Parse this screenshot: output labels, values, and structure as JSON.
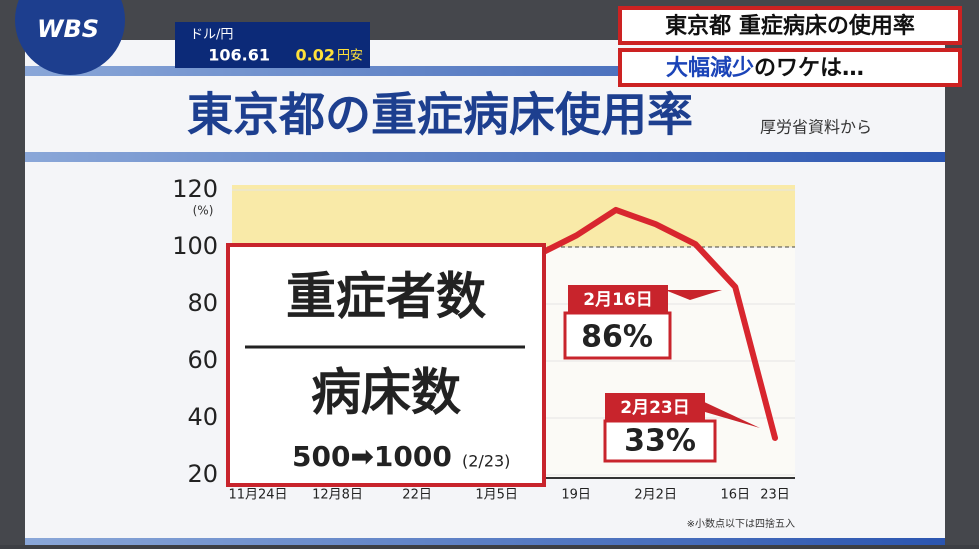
{
  "logo": "WBS",
  "ticker": {
    "pair": "ドル/円",
    "rate": "106.61",
    "change": "0.02",
    "direction": "円安"
  },
  "headline": {
    "line1": "東京都 重症病床の使用率",
    "line2_emphasis": "大幅減少",
    "line2_rest": "のワケは…"
  },
  "chart_data": {
    "type": "line",
    "title": "東京都の重症病床使用率",
    "source": "厚労省資料から",
    "y_unit": "(%)",
    "footnote": "※小数点以下は四捨五入",
    "categories": [
      "11月24日",
      null,
      "12月8日",
      null,
      "22日",
      null,
      "1月5日",
      null,
      "19日",
      null,
      "2月2日",
      null,
      "16日",
      "23日"
    ],
    "series": [
      {
        "name": "重症病床使用率",
        "color": "#d8262e",
        "values": [
          null,
          null,
          null,
          null,
          null,
          null,
          null,
          97,
          104,
          113,
          108,
          101,
          86,
          33
        ]
      }
    ],
    "ylim": [
      20,
      120
    ],
    "yticks": [
      20,
      40,
      60,
      80,
      100,
      120
    ],
    "reference_line": 100,
    "annotations": [
      {
        "date": "2月16日",
        "text": "86%"
      },
      {
        "date": "2月23日",
        "text": "33%"
      }
    ],
    "formula": {
      "numerator": "重症者数",
      "denominator": "病床数",
      "change": "500➡1000",
      "date": "(2/23)"
    }
  }
}
